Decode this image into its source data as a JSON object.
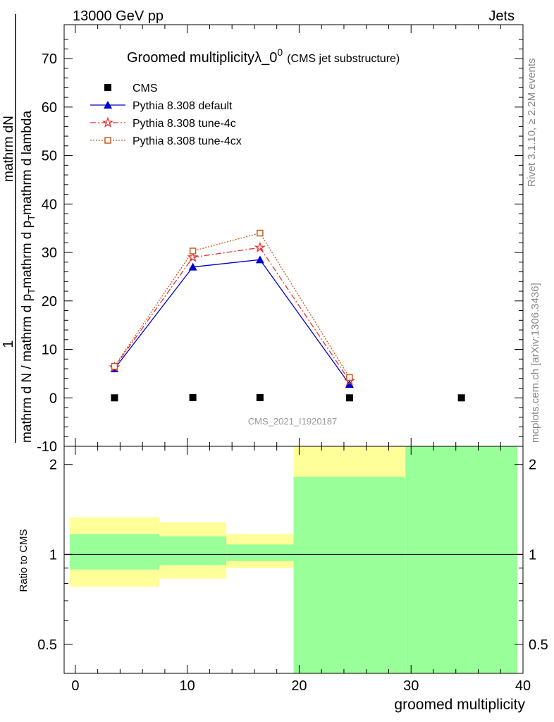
{
  "header": {
    "left": "13000 GeV pp",
    "right": "Jets"
  },
  "side_labels": {
    "rivet": "Rivet 3.1.10, ≥ 2.2M events",
    "mcplots": "mcplots.cern.ch [arXiv:1306.3436]"
  },
  "chart_data": [
    {
      "type": "line",
      "title_main": "Groomed multiplicityλ_0",
      "title_sup": "0",
      "title_suffix": "(CMS jet substructure)",
      "ylabel_top": "1",
      "ylabel_numerator": "mathrm d N / mathrm d p",
      "ylabel_numerator_sub": "T",
      "ylabel_numerator_tail": "mathrm d lambda",
      "ylabel_denominator": "mathrm d N / mathrm d p",
      "ylabel_denominator_sub": "T",
      "ylabel_denominator_tail": "mathrm d p",
      "ylabel_denominator_sub2": "T",
      "ylabel_denominator_end": "mathrm d lambda",
      "ylabel_fraction_top": "mathrm d",
      "ylabel_fraction_top_letter": "N",
      "ylim": [
        -10,
        77
      ],
      "yticks": [
        -10,
        0,
        10,
        20,
        30,
        40,
        50,
        60,
        70
      ],
      "xlim": [
        -1,
        40
      ],
      "watermark": "CMS_2021_I1920187",
      "legend_position": "top-left",
      "x": [
        3.5,
        10.5,
        16.5,
        24.5,
        34.5
      ],
      "series": [
        {
          "name": "CMS",
          "values": [
            0.0,
            0.05,
            0.05,
            0.0,
            0.0
          ],
          "color": "#000000",
          "marker": "square"
        },
        {
          "name": "Pythia 8.308 default",
          "values": [
            6.0,
            27.0,
            28.5,
            2.8,
            null
          ],
          "color": "#0000cc",
          "marker": "triangle",
          "dash": "solid"
        },
        {
          "name": "Pythia 8.308 tune-4c",
          "values": [
            6.3,
            29.0,
            31.0,
            3.5,
            null
          ],
          "color": "#e53030",
          "marker": "star",
          "dash": "dashdot"
        },
        {
          "name": "Pythia 8.308 tune-4cx",
          "values": [
            6.5,
            30.3,
            34.0,
            4.2,
            null
          ],
          "color": "#c85a1e",
          "marker": "open-square",
          "dash": "dotted"
        }
      ]
    },
    {
      "type": "area",
      "ylabel": "Ratio to CMS",
      "xlabel": "groomed multiplicity",
      "ylim": [
        0.4,
        2.3
      ],
      "log_y": true,
      "yticks": [
        0.5,
        1,
        2
      ],
      "yticklabels": [
        "0.5",
        "1",
        "2"
      ],
      "xticks": [
        0,
        10,
        20,
        30,
        40
      ],
      "xticklabels": [
        "0",
        "10",
        "20",
        "30",
        "40"
      ],
      "reference_line": 1,
      "bands": [
        {
          "x0": -0.5,
          "x1": 7.5,
          "yellow": [
            0.78,
            1.33
          ],
          "green": [
            0.89,
            1.17
          ]
        },
        {
          "x0": 7.5,
          "x1": 13.5,
          "yellow": [
            0.83,
            1.28
          ],
          "green": [
            0.92,
            1.15
          ]
        },
        {
          "x0": 13.5,
          "x1": 19.5,
          "yellow": [
            0.9,
            1.17
          ],
          "green": [
            0.95,
            1.08
          ]
        },
        {
          "x0": 19.5,
          "x1": 29.5,
          "yellow": [
            0.35,
            2.6
          ],
          "green": [
            0.35,
            1.82
          ]
        },
        {
          "x0": 29.5,
          "x1": 39.5,
          "yellow": [
            0.35,
            2.6
          ],
          "green": [
            0.35,
            2.6
          ]
        }
      ],
      "band_colors": {
        "yellow": "#ffff99",
        "green": "#99ff99"
      }
    }
  ]
}
